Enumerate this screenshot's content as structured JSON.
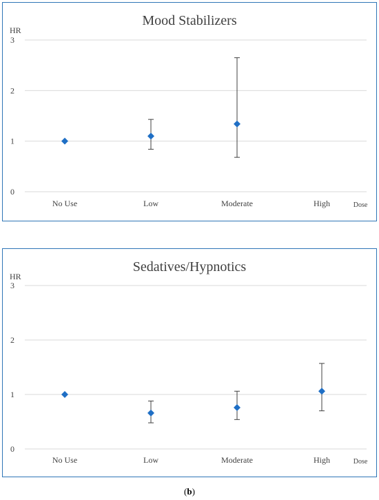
{
  "chart_data": [
    {
      "type": "scatter",
      "title": "Mood Stabilizers",
      "ylabel": "HR",
      "xlabel": "Dose",
      "categories": [
        "No Use",
        "Low",
        "Moderate",
        "High"
      ],
      "y_ticks": [
        "0",
        "1",
        "2",
        "3"
      ],
      "ylim": [
        0,
        3
      ],
      "series": [
        {
          "values": [
            1.0,
            1.1,
            1.34,
            null
          ],
          "lower": [
            null,
            0.84,
            0.68,
            null
          ],
          "upper": [
            null,
            1.43,
            2.65,
            null
          ]
        }
      ],
      "grid": true
    },
    {
      "type": "scatter",
      "title": "Sedatives/Hypnotics",
      "ylabel": "HR",
      "xlabel": "Dose",
      "categories": [
        "No Use",
        "Low",
        "Moderate",
        "High"
      ],
      "y_ticks": [
        "0",
        "1",
        "2",
        "3"
      ],
      "ylim": [
        0,
        3
      ],
      "series": [
        {
          "values": [
            1.0,
            0.66,
            0.76,
            1.06
          ],
          "lower": [
            null,
            0.48,
            0.54,
            0.7
          ],
          "upper": [
            null,
            0.88,
            1.06,
            1.57
          ]
        }
      ],
      "grid": true
    }
  ],
  "colors": {
    "marker": "#1f6fc5",
    "errorbar": "#404040",
    "grid": "#d9d9d9",
    "border": "#2e75b6"
  },
  "caption": {
    "label": "b"
  }
}
